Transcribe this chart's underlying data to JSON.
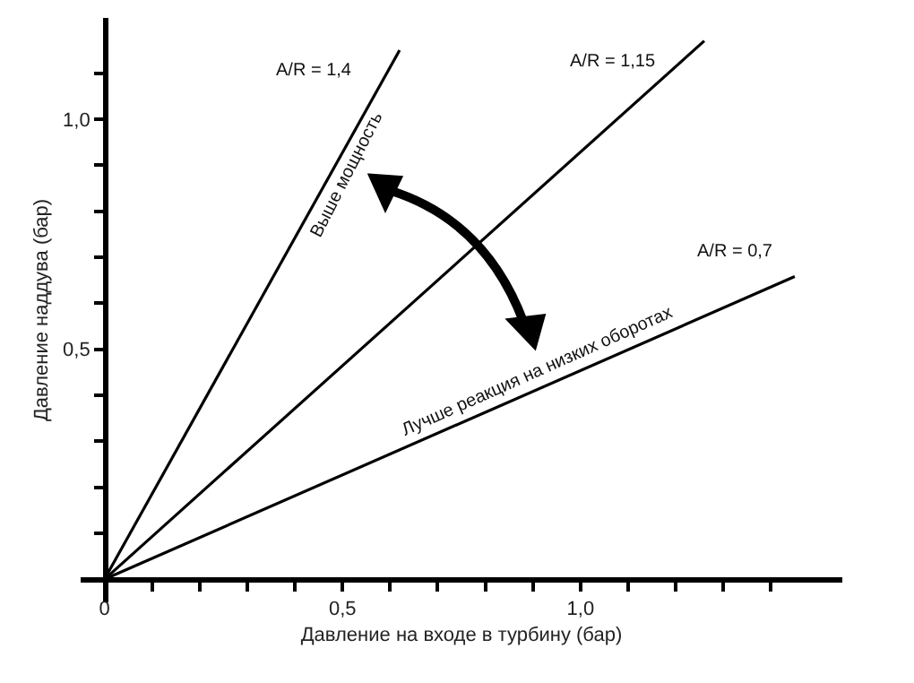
{
  "chart_data": {
    "type": "line",
    "xlabel": "Давление на входе в турбину (бар)",
    "ylabel": "Давление наддува (бар)",
    "xlim": [
      -0.05,
      1.55
    ],
    "ylim": [
      -0.05,
      1.22
    ],
    "xticks": [
      {
        "value": 0,
        "label": "0"
      },
      {
        "value": 0.1,
        "label": null
      },
      {
        "value": 0.2,
        "label": null
      },
      {
        "value": 0.3,
        "label": null
      },
      {
        "value": 0.4,
        "label": null
      },
      {
        "value": 0.5,
        "label": "0,5"
      },
      {
        "value": 0.6,
        "label": null
      },
      {
        "value": 0.7,
        "label": null
      },
      {
        "value": 0.8,
        "label": null
      },
      {
        "value": 0.9,
        "label": null
      },
      {
        "value": 1.0,
        "label": "1,0"
      },
      {
        "value": 1.1,
        "label": null
      },
      {
        "value": 1.2,
        "label": null
      },
      {
        "value": 1.3,
        "label": null
      },
      {
        "value": 1.4,
        "label": null
      }
    ],
    "yticks": [
      {
        "value": 0.1,
        "label": null
      },
      {
        "value": 0.2,
        "label": null
      },
      {
        "value": 0.3,
        "label": null
      },
      {
        "value": 0.4,
        "label": null
      },
      {
        "value": 0.5,
        "label": "0,5"
      },
      {
        "value": 0.6,
        "label": null
      },
      {
        "value": 0.7,
        "label": null
      },
      {
        "value": 0.8,
        "label": null
      },
      {
        "value": 0.9,
        "label": null
      },
      {
        "value": 1.0,
        "label": "1,0"
      },
      {
        "value": 1.1,
        "label": null
      }
    ],
    "series": [
      {
        "name": "A/R = 1,4",
        "color": "#000000",
        "x": [
          0,
          0.62
        ],
        "values": [
          0,
          1.15
        ]
      },
      {
        "name": "A/R = 1,15",
        "color": "#000000",
        "x": [
          0,
          1.26
        ],
        "values": [
          0,
          1.17
        ]
      },
      {
        "name": "A/R = 0,7",
        "color": "#000000",
        "x": [
          0,
          1.45
        ],
        "values": [
          0,
          0.658
        ]
      }
    ],
    "annotations": [
      "Выше мощность",
      "Лучше реакция на низких оборотах"
    ],
    "marker": "none",
    "line_style": "solid"
  }
}
